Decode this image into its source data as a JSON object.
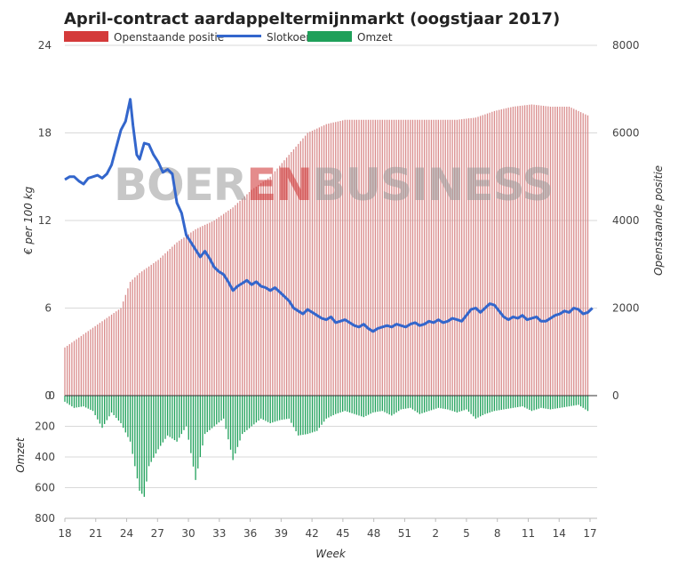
{
  "chart_data": {
    "type": "line",
    "title": "April-contract aardappeltermijnmarkt (oogstjaar 2017)",
    "watermark": {
      "part1": "BOER",
      "part2": "EN",
      "part3": "BUSINESS"
    },
    "legend": [
      {
        "name": "Openstaande positie",
        "color": "#d43a3a"
      },
      {
        "name": "Slotkoers",
        "color": "#3366cc"
      },
      {
        "name": "Omzet",
        "color": "#1fa05a"
      }
    ],
    "xlabel": "Week",
    "x_ticks": [
      "18",
      "21",
      "24",
      "27",
      "30",
      "33",
      "36",
      "39",
      "42",
      "45",
      "48",
      "51",
      "2",
      "5",
      "8",
      "11",
      "14",
      "17"
    ],
    "left_axis": {
      "label": "€ per 100 kg",
      "ticks": [
        "0",
        "6",
        "12",
        "18",
        "24"
      ],
      "range": [
        0,
        24
      ]
    },
    "right_axis": {
      "label": "Openstaande positie",
      "ticks": [
        "0",
        "2000",
        "4000",
        "6000",
        "8000"
      ],
      "range": [
        0,
        8000
      ]
    },
    "volume_axis": {
      "label": "Omzet",
      "ticks": [
        "0",
        "200",
        "400",
        "600",
        "800"
      ],
      "range": [
        0,
        800
      ]
    },
    "x_range": [
      0,
      57
    ],
    "series": [
      {
        "name": "Slotkoers",
        "axis": "left",
        "points": [
          [
            0,
            14.8
          ],
          [
            0.5,
            15.0
          ],
          [
            1,
            15.0
          ],
          [
            1.5,
            14.7
          ],
          [
            2,
            14.5
          ],
          [
            2.5,
            14.9
          ],
          [
            3,
            15.0
          ],
          [
            3.5,
            15.1
          ],
          [
            4,
            14.9
          ],
          [
            4.5,
            15.2
          ],
          [
            5,
            15.8
          ],
          [
            5.5,
            17.0
          ],
          [
            6,
            18.2
          ],
          [
            6.5,
            18.8
          ],
          [
            7,
            20.3
          ],
          [
            7.3,
            18.5
          ],
          [
            7.7,
            16.5
          ],
          [
            8,
            16.2
          ],
          [
            8.5,
            17.3
          ],
          [
            9,
            17.2
          ],
          [
            9.5,
            16.5
          ],
          [
            10,
            16.0
          ],
          [
            10.5,
            15.3
          ],
          [
            11,
            15.5
          ],
          [
            11.5,
            15.2
          ],
          [
            12,
            13.2
          ],
          [
            12.5,
            12.5
          ],
          [
            13,
            11.0
          ],
          [
            13.5,
            10.5
          ],
          [
            14,
            10.0
          ],
          [
            14.5,
            9.5
          ],
          [
            15,
            9.9
          ],
          [
            15.5,
            9.4
          ],
          [
            16,
            8.8
          ],
          [
            16.5,
            8.5
          ],
          [
            17,
            8.3
          ],
          [
            17.5,
            7.8
          ],
          [
            18,
            7.2
          ],
          [
            18.5,
            7.5
          ],
          [
            19,
            7.7
          ],
          [
            19.5,
            7.9
          ],
          [
            20,
            7.6
          ],
          [
            20.5,
            7.8
          ],
          [
            21,
            7.5
          ],
          [
            21.5,
            7.4
          ],
          [
            22,
            7.2
          ],
          [
            22.5,
            7.4
          ],
          [
            23,
            7.1
          ],
          [
            23.5,
            6.8
          ],
          [
            24,
            6.5
          ],
          [
            24.5,
            6.0
          ],
          [
            25,
            5.8
          ],
          [
            25.5,
            5.6
          ],
          [
            26,
            5.9
          ],
          [
            26.5,
            5.7
          ],
          [
            27,
            5.5
          ],
          [
            27.5,
            5.3
          ],
          [
            28,
            5.2
          ],
          [
            28.5,
            5.4
          ],
          [
            29,
            5.0
          ],
          [
            29.5,
            5.1
          ],
          [
            30,
            5.2
          ],
          [
            30.5,
            5.0
          ],
          [
            31,
            4.8
          ],
          [
            31.5,
            4.7
          ],
          [
            32,
            4.9
          ],
          [
            32.5,
            4.6
          ],
          [
            33,
            4.4
          ],
          [
            33.5,
            4.6
          ],
          [
            34,
            4.7
          ],
          [
            34.5,
            4.8
          ],
          [
            35,
            4.7
          ],
          [
            35.5,
            4.9
          ],
          [
            36,
            4.8
          ],
          [
            36.5,
            4.7
          ],
          [
            37,
            4.9
          ],
          [
            37.5,
            5.0
          ],
          [
            38,
            4.8
          ],
          [
            38.5,
            4.9
          ],
          [
            39,
            5.1
          ],
          [
            39.5,
            5.0
          ],
          [
            40,
            5.2
          ],
          [
            40.5,
            5.0
          ],
          [
            41,
            5.1
          ],
          [
            41.5,
            5.3
          ],
          [
            42,
            5.2
          ],
          [
            42.5,
            5.1
          ],
          [
            43,
            5.5
          ],
          [
            43.5,
            5.9
          ],
          [
            44,
            6.0
          ],
          [
            44.5,
            5.7
          ],
          [
            45,
            6.0
          ],
          [
            45.5,
            6.3
          ],
          [
            46,
            6.2
          ],
          [
            46.5,
            5.8
          ],
          [
            47,
            5.4
          ],
          [
            47.5,
            5.2
          ],
          [
            48,
            5.4
          ],
          [
            48.5,
            5.3
          ],
          [
            49,
            5.5
          ],
          [
            49.5,
            5.2
          ],
          [
            50,
            5.3
          ],
          [
            50.5,
            5.4
          ],
          [
            51,
            5.1
          ],
          [
            51.5,
            5.1
          ],
          [
            52,
            5.3
          ],
          [
            52.5,
            5.5
          ],
          [
            53,
            5.6
          ],
          [
            53.5,
            5.8
          ],
          [
            54,
            5.7
          ],
          [
            54.5,
            6.0
          ],
          [
            55,
            5.9
          ],
          [
            55.5,
            5.6
          ],
          [
            56,
            5.7
          ],
          [
            56.5,
            6.0
          ]
        ]
      },
      {
        "name": "Openstaande positie",
        "axis": "right",
        "points": [
          [
            0,
            1100
          ],
          [
            2,
            1400
          ],
          [
            4,
            1700
          ],
          [
            6,
            2000
          ],
          [
            7,
            2600
          ],
          [
            8,
            2800
          ],
          [
            10,
            3100
          ],
          [
            12,
            3500
          ],
          [
            14,
            3800
          ],
          [
            16,
            4000
          ],
          [
            18,
            4300
          ],
          [
            20,
            4700
          ],
          [
            22,
            5000
          ],
          [
            24,
            5500
          ],
          [
            26,
            6000
          ],
          [
            28,
            6200
          ],
          [
            30,
            6300
          ],
          [
            32,
            6300
          ],
          [
            34,
            6300
          ],
          [
            36,
            6300
          ],
          [
            38,
            6300
          ],
          [
            40,
            6300
          ],
          [
            42,
            6300
          ],
          [
            44,
            6350
          ],
          [
            46,
            6500
          ],
          [
            48,
            6600
          ],
          [
            50,
            6650
          ],
          [
            52,
            6600
          ],
          [
            54,
            6600
          ],
          [
            56,
            6400
          ]
        ]
      },
      {
        "name": "Omzet",
        "axis": "volume",
        "points": [
          [
            0,
            40
          ],
          [
            1,
            80
          ],
          [
            2,
            70
          ],
          [
            3,
            100
          ],
          [
            4,
            210
          ],
          [
            5,
            110
          ],
          [
            6,
            180
          ],
          [
            7,
            300
          ],
          [
            8,
            620
          ],
          [
            8.5,
            660
          ],
          [
            9,
            460
          ],
          [
            10,
            350
          ],
          [
            11,
            260
          ],
          [
            12,
            300
          ],
          [
            13,
            200
          ],
          [
            14,
            550
          ],
          [
            15,
            250
          ],
          [
            16,
            200
          ],
          [
            17,
            150
          ],
          [
            18,
            420
          ],
          [
            19,
            250
          ],
          [
            20,
            200
          ],
          [
            21,
            150
          ],
          [
            22,
            180
          ],
          [
            23,
            160
          ],
          [
            24,
            150
          ],
          [
            25,
            260
          ],
          [
            26,
            250
          ],
          [
            27,
            230
          ],
          [
            28,
            150
          ],
          [
            29,
            120
          ],
          [
            30,
            100
          ],
          [
            31,
            120
          ],
          [
            32,
            140
          ],
          [
            33,
            110
          ],
          [
            34,
            100
          ],
          [
            35,
            130
          ],
          [
            36,
            90
          ],
          [
            37,
            80
          ],
          [
            38,
            120
          ],
          [
            39,
            100
          ],
          [
            40,
            80
          ],
          [
            41,
            90
          ],
          [
            42,
            110
          ],
          [
            43,
            90
          ],
          [
            44,
            150
          ],
          [
            45,
            120
          ],
          [
            46,
            100
          ],
          [
            47,
            90
          ],
          [
            48,
            80
          ],
          [
            49,
            70
          ],
          [
            50,
            100
          ],
          [
            51,
            80
          ],
          [
            52,
            90
          ],
          [
            53,
            80
          ],
          [
            54,
            70
          ],
          [
            55,
            60
          ],
          [
            56,
            100
          ]
        ]
      }
    ]
  }
}
